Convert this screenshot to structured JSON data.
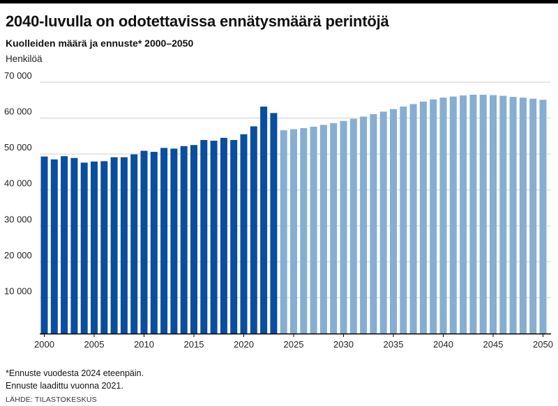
{
  "title": "2040-luvulla on odotettavissa ennätysmäärä perintöjä",
  "subtitle": "Kuolleiden määrä ja ennuste* 2000–2050",
  "unit_label": "Henkilöä",
  "notes": [
    "*Ennuste vuodesta 2024 eteenpäin.",
    "Ennuste laadittu vuonna 2021."
  ],
  "source": "LÄHDE: TILASTOKESKUS",
  "colors": {
    "actual": "#0a4e9e",
    "forecast": "#86aed2",
    "grid": "#cfcfcf",
    "axis": "#000000"
  },
  "chart_data": {
    "type": "bar",
    "title": "2040-luvulla on odotettavissa ennätysmäärä perintöjä",
    "subtitle": "Kuolleiden määrä ja ennuste* 2000–2050",
    "ylabel": "Henkilöä",
    "xlabel": "",
    "ylim": [
      0,
      70000
    ],
    "grid": true,
    "forecast_from": 2024,
    "y_ticks": [
      10000,
      20000,
      30000,
      40000,
      50000,
      60000,
      70000
    ],
    "y_tick_labels": [
      "10 000",
      "20 000",
      "30 000",
      "40 000",
      "50 000",
      "60 000",
      "70 000"
    ],
    "x_ticks": [
      2000,
      2005,
      2010,
      2015,
      2020,
      2025,
      2030,
      2035,
      2040,
      2045,
      2050
    ],
    "categories": [
      2000,
      2001,
      2002,
      2003,
      2004,
      2005,
      2006,
      2007,
      2008,
      2009,
      2010,
      2011,
      2012,
      2013,
      2014,
      2015,
      2016,
      2017,
      2018,
      2019,
      2020,
      2021,
      2022,
      2023,
      2024,
      2025,
      2026,
      2027,
      2028,
      2029,
      2030,
      2031,
      2032,
      2033,
      2034,
      2035,
      2036,
      2037,
      2038,
      2039,
      2040,
      2041,
      2042,
      2043,
      2044,
      2045,
      2046,
      2047,
      2048,
      2049,
      2050
    ],
    "values": [
      49300,
      48500,
      49400,
      48900,
      47600,
      47900,
      48000,
      49100,
      49100,
      49900,
      50900,
      50600,
      51700,
      51500,
      52200,
      52500,
      53900,
      53700,
      54500,
      53900,
      55500,
      57700,
      63200,
      61400,
      56600,
      56900,
      57200,
      57600,
      58100,
      58600,
      59200,
      59800,
      60400,
      61100,
      61800,
      62500,
      63200,
      63900,
      64600,
      65200,
      65700,
      66000,
      66300,
      66500,
      66500,
      66400,
      66200,
      65900,
      65700,
      65400,
      65100
    ]
  }
}
